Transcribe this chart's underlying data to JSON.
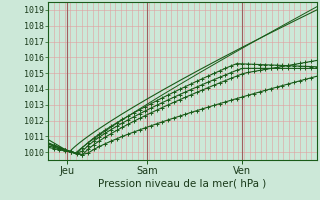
{
  "title": "Pression niveau de la mer( hPa )",
  "bg_color": "#cce8d8",
  "line_color": "#1a5c1a",
  "ylim": [
    1009.5,
    1019.5
  ],
  "yticks": [
    1010,
    1011,
    1012,
    1013,
    1014,
    1015,
    1016,
    1017,
    1018,
    1019
  ],
  "xtick_labels": [
    "Jeu",
    "Sam",
    "Ven"
  ],
  "xtick_positions": [
    0.07,
    0.37,
    0.72
  ],
  "vline_positions": [
    0.07,
    0.37,
    0.72
  ],
  "title_fontsize": 7.5,
  "ytick_fontsize": 6,
  "xtick_fontsize": 7
}
